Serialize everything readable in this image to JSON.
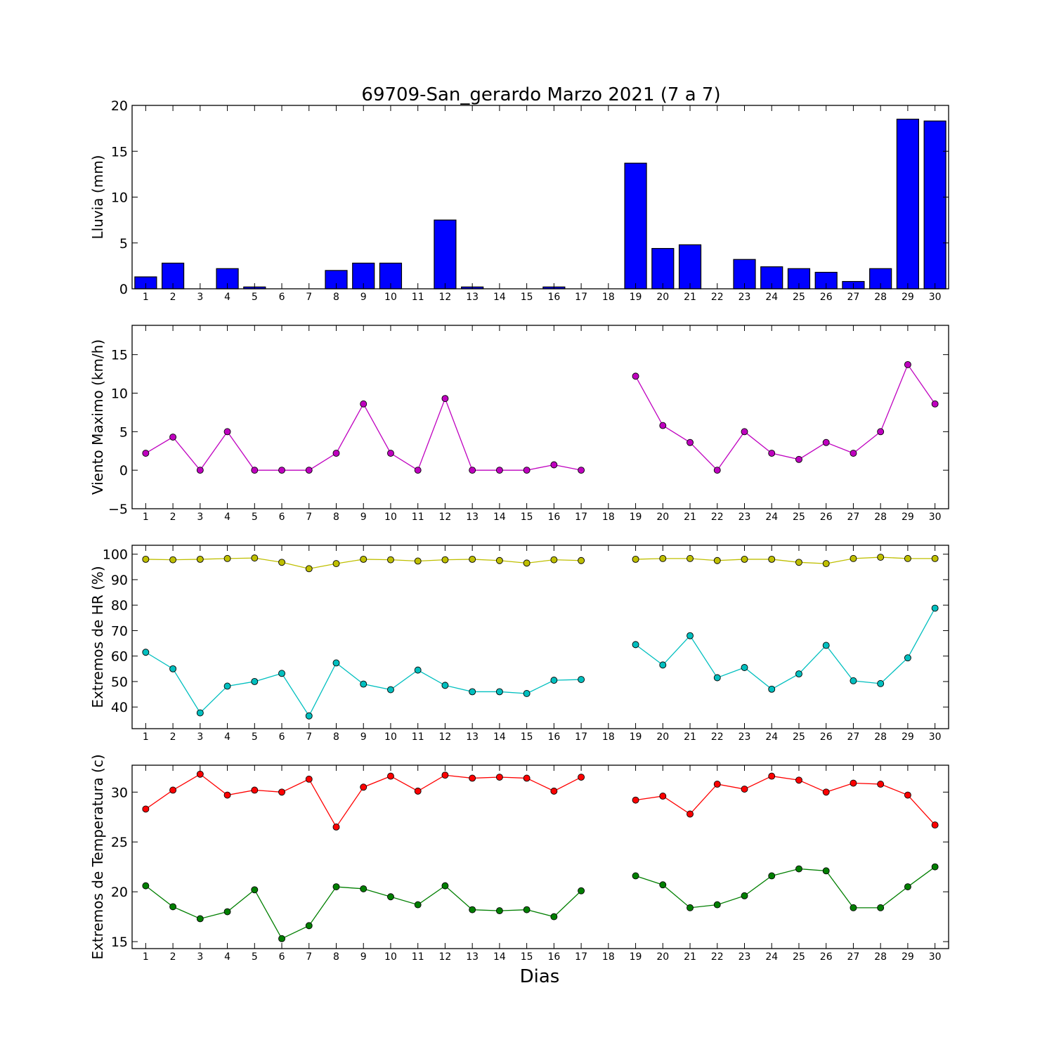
{
  "chart_data": {
    "title": "69709-San_gerardo Marzo 2021  (7 a 7)",
    "xlabel": "Dias",
    "days": [
      1,
      2,
      3,
      4,
      5,
      6,
      7,
      8,
      9,
      10,
      11,
      12,
      13,
      14,
      15,
      16,
      17,
      18,
      19,
      20,
      21,
      22,
      23,
      24,
      25,
      26,
      27,
      28,
      29,
      30
    ],
    "panels": [
      {
        "id": "lluvia",
        "type": "bar",
        "ylabel": "Lluvia (mm)",
        "ylim": [
          0,
          20
        ],
        "yticks": [
          0,
          5,
          10,
          15,
          20
        ],
        "series": [
          {
            "color": "#0000ff",
            "values": [
              1.3,
              2.8,
              0,
              2.2,
              0.2,
              0,
              0,
              2.0,
              2.8,
              2.8,
              0,
              7.5,
              0.2,
              0,
              0,
              0.2,
              0,
              0,
              13.7,
              4.4,
              4.8,
              0,
              3.2,
              2.4,
              2.2,
              1.8,
              0.8,
              2.2,
              18.5,
              18.3
            ]
          }
        ]
      },
      {
        "id": "viento",
        "type": "line",
        "ylabel": "Viento Maximo (km/h)",
        "ylim": [
          -5,
          18.8
        ],
        "yticks": [
          -5,
          0,
          5,
          10,
          15
        ],
        "series": [
          {
            "color": "#bf00bf",
            "values": [
              2.2,
              4.3,
              0,
              5.0,
              0,
              0,
              0,
              2.2,
              8.6,
              2.2,
              0,
              9.3,
              0,
              0,
              0,
              0.7,
              0,
              null,
              12.2,
              5.8,
              3.6,
              0,
              5.0,
              2.2,
              1.4,
              3.6,
              2.2,
              5.0,
              13.7,
              8.6
            ]
          }
        ]
      },
      {
        "id": "hr",
        "type": "line",
        "ylabel": "Extremos de HR (%)",
        "ylim": [
          31.5,
          103.5
        ],
        "yticks": [
          40,
          50,
          60,
          70,
          80,
          90,
          100
        ],
        "series": [
          {
            "color": "#bfbf00",
            "values": [
              98.0,
              97.8,
              98.0,
              98.3,
              98.5,
              96.8,
              94.3,
              96.3,
              98.0,
              97.8,
              97.3,
              97.8,
              98.0,
              97.5,
              96.5,
              97.8,
              97.5,
              null,
              98.0,
              98.3,
              98.3,
              97.5,
              98.0,
              98.0,
              96.8,
              96.3,
              98.3,
              98.8,
              98.3,
              98.3
            ]
          },
          {
            "color": "#00bfbf",
            "values": [
              61.5,
              55.0,
              37.7,
              48.2,
              50.0,
              53.2,
              36.5,
              57.3,
              49.0,
              46.8,
              54.5,
              48.5,
              46.0,
              46.0,
              45.3,
              50.5,
              50.8,
              null,
              64.5,
              56.5,
              68.0,
              51.5,
              55.5,
              47.0,
              53.0,
              64.2,
              50.3,
              49.2,
              59.3,
              78.8
            ]
          }
        ]
      },
      {
        "id": "temp",
        "type": "line",
        "ylabel": "Extremos de Temperatura (c)",
        "ylim": [
          14.3,
          32.7
        ],
        "yticks": [
          15,
          20,
          25,
          30
        ],
        "series": [
          {
            "color": "#ff0000",
            "values": [
              28.3,
              30.2,
              31.8,
              29.7,
              30.2,
              30.0,
              31.3,
              26.5,
              30.5,
              31.6,
              30.1,
              31.7,
              31.4,
              31.5,
              31.4,
              30.1,
              31.5,
              null,
              29.2,
              29.6,
              27.8,
              30.8,
              30.3,
              31.6,
              31.2,
              30.0,
              30.9,
              30.8,
              29.7,
              26.7
            ]
          },
          {
            "color": "#007f00",
            "values": [
              20.6,
              18.5,
              17.3,
              18.0,
              20.2,
              15.3,
              16.6,
              20.5,
              20.3,
              19.5,
              18.7,
              20.6,
              18.2,
              18.1,
              18.2,
              17.5,
              20.1,
              null,
              21.6,
              20.7,
              18.4,
              18.7,
              19.6,
              21.6,
              22.3,
              22.1,
              18.4,
              18.4,
              20.5,
              22.5
            ]
          }
        ]
      }
    ]
  }
}
